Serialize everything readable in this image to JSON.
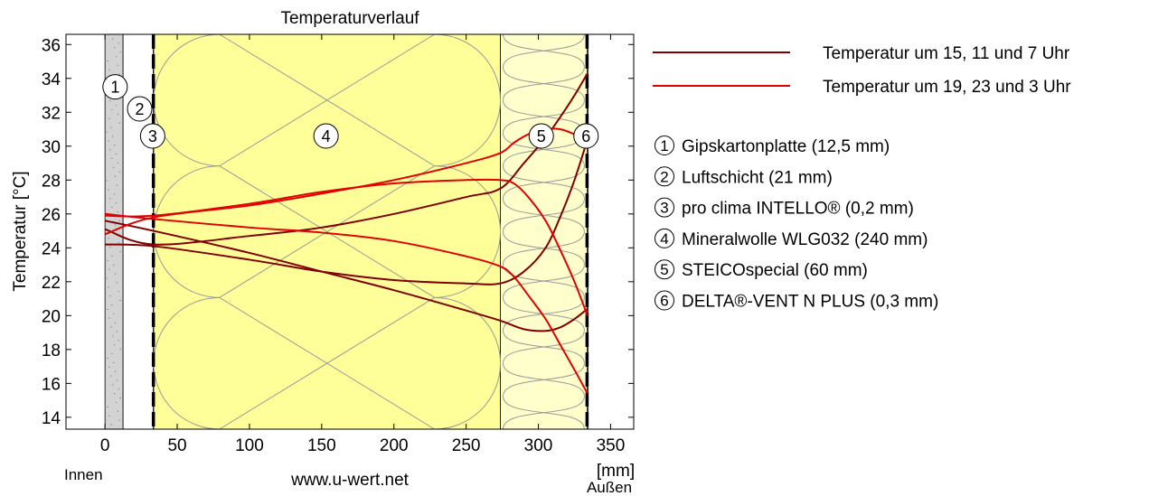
{
  "chart_data": {
    "type": "line",
    "title": "Temperaturverlauf",
    "xlabel": "[mm]",
    "ylabel": "Temperatur [°C]",
    "xlim": [
      -27,
      366
    ],
    "ylim": [
      13.3,
      36.6
    ],
    "x_ticks": [
      0,
      50,
      100,
      150,
      200,
      250,
      300,
      350
    ],
    "y_ticks": [
      14,
      16,
      18,
      20,
      22,
      24,
      26,
      28,
      30,
      32,
      34,
      36
    ],
    "grid": false,
    "legend_position": "right",
    "side_labels": {
      "inside": "Innen",
      "outside": "Außen"
    },
    "watermark": "www.u-wert.net",
    "legend": [
      {
        "label": "Temperatur um 15, 11 und 7 Uhr",
        "color": "#800000"
      },
      {
        "label": "Temperatur um 19, 23 und 3 Uhr",
        "color": "#e00000"
      }
    ],
    "layers": [
      {
        "number": "1",
        "name": "Gipskartonplatte (12,5 mm)",
        "x_start": 0,
        "x_end": 12.5,
        "fill": "#d3d3d3",
        "label_pos": [
          7,
          33.5
        ]
      },
      {
        "number": "2",
        "name": "Luftschicht (21 mm)",
        "x_start": 12.5,
        "x_end": 33.5,
        "fill": "#ffffff",
        "label_pos": [
          24,
          32.2
        ]
      },
      {
        "number": "3",
        "name": "pro clima INTELLO® (0,2 mm)",
        "x_start": 33.5,
        "x_end": 33.7,
        "fill": "#ffffff",
        "label_pos": [
          33,
          30.6
        ]
      },
      {
        "number": "4",
        "name": "Mineralwolle WLG032 (240 mm)",
        "x_start": 33.7,
        "x_end": 273.7,
        "fill": "#ffff99",
        "label_pos": [
          153,
          30.6
        ]
      },
      {
        "number": "5",
        "name": "STEICOspecial (60 mm)",
        "x_start": 273.7,
        "x_end": 333.7,
        "fill": "#ffffcc",
        "label_pos": [
          302,
          30.6
        ]
      },
      {
        "number": "6",
        "name": "DELTA®-VENT N PLUS (0,3 mm)",
        "x_start": 333.7,
        "x_end": 334,
        "fill": "#ffffff",
        "label_pos": [
          333,
          30.6
        ]
      }
    ],
    "series": [
      {
        "group": "Temperatur um 15, 11 und 7 Uhr",
        "color": "#800000",
        "x": [
          0,
          33.7,
          100,
          150,
          200,
          250,
          273.7,
          290,
          305,
          315,
          325,
          334
        ],
        "y": [
          25.1,
          24.2,
          24.7,
          25.2,
          26.0,
          27.0,
          27.5,
          29.0,
          30.5,
          31.7,
          33.0,
          34.3
        ]
      },
      {
        "group": "Temperatur um 15, 11 und 7 Uhr",
        "color": "#800000",
        "x": [
          0,
          33.7,
          100,
          150,
          200,
          250,
          273.7,
          290,
          305,
          315,
          325,
          334
        ],
        "y": [
          24.2,
          24.1,
          23.3,
          22.6,
          22.1,
          21.9,
          21.9,
          22.6,
          24.0,
          25.8,
          28.0,
          30.4
        ]
      },
      {
        "group": "Temperatur um 15, 11 und 7 Uhr",
        "color": "#800000",
        "x": [
          0,
          33.7,
          100,
          150,
          200,
          250,
          273.7,
          290,
          305,
          315,
          325,
          334
        ],
        "y": [
          25.6,
          25.0,
          23.7,
          22.6,
          21.5,
          20.3,
          19.7,
          19.2,
          19.1,
          19.3,
          19.8,
          20.4
        ]
      },
      {
        "group": "Temperatur um 19, 23 und 3 Uhr",
        "color": "#e00000",
        "x": [
          0,
          33.7,
          100,
          150,
          200,
          250,
          273.7,
          283,
          293,
          305,
          315,
          325,
          334
        ],
        "y": [
          24.8,
          25.8,
          26.5,
          27.2,
          28.0,
          29.0,
          29.6,
          30.2,
          30.7,
          31.0,
          31.0,
          30.7,
          30.3
        ]
      },
      {
        "group": "Temperatur um 19, 23 und 3 Uhr",
        "color": "#e00000",
        "x": [
          0,
          33.7,
          100,
          150,
          200,
          250,
          273.7,
          283,
          293,
          305,
          315,
          325,
          334
        ],
        "y": [
          25.9,
          25.9,
          26.6,
          27.3,
          27.8,
          28.0,
          28.0,
          27.8,
          27.0,
          25.6,
          23.9,
          22.0,
          20.0
        ]
      },
      {
        "group": "Temperatur um 19, 23 und 3 Uhr",
        "color": "#e00000",
        "x": [
          0,
          33.7,
          100,
          150,
          200,
          250,
          273.7,
          283,
          293,
          305,
          315,
          325,
          334
        ],
        "y": [
          26.0,
          25.7,
          25.2,
          24.9,
          24.4,
          23.5,
          22.9,
          22.3,
          21.2,
          19.8,
          18.3,
          16.8,
          15.4
        ]
      }
    ]
  }
}
